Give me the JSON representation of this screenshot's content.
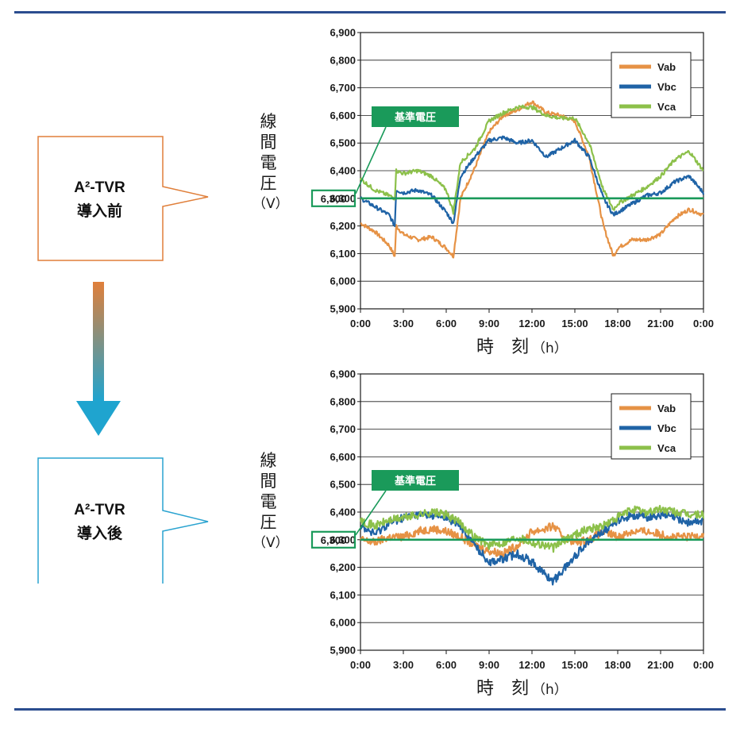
{
  "callouts": {
    "before": {
      "line1": "A²-TVR",
      "line2": "導入前"
    },
    "after": {
      "line1": "A²-TVR",
      "line2": "導入後"
    }
  },
  "colors": {
    "rule": "#2b4d8f",
    "before_box": "#e07f3a",
    "after_box": "#2aa3d0",
    "arrow_top": "#e07f3a",
    "arrow_bottom": "#1fa4cf",
    "reference_line": "#1a9a5a",
    "reference_tag": "#1a9a5a"
  },
  "chart_data": [
    {
      "type": "line",
      "ylabel": [
        "線",
        "間",
        "電",
        "圧",
        "（V）"
      ],
      "xlabel": "時　刻",
      "xunit": "（h）",
      "x_ticks": [
        "0:00",
        "3:00",
        "6:00",
        "9:00",
        "12:00",
        "15:00",
        "18:00",
        "21:00",
        "0:00"
      ],
      "y_ticks": [
        "6,900",
        "6,800",
        "6,700",
        "6,600",
        "6,500",
        "6,400",
        "6,300",
        "6,200",
        "6,100",
        "6,000",
        "5,900"
      ],
      "ylim": [
        5900,
        6900
      ],
      "xlim": [
        0,
        24
      ],
      "grid": true,
      "legend_position": "top-right",
      "reference": {
        "label": "基準電圧",
        "value": 6300,
        "value_label": "6,300"
      },
      "x": [
        0,
        1,
        2,
        2.4,
        2.5,
        3,
        4,
        5,
        6,
        6.5,
        7,
        8,
        9,
        10,
        11,
        12,
        13,
        14,
        15,
        16,
        17,
        17.7,
        18,
        19,
        20,
        21,
        22,
        23,
        24
      ],
      "series": [
        {
          "name": "Vab",
          "color": "#e69245",
          "values": [
            6210,
            6180,
            6130,
            6090,
            6200,
            6170,
            6150,
            6160,
            6120,
            6090,
            6300,
            6410,
            6540,
            6600,
            6620,
            6650,
            6610,
            6600,
            6580,
            6450,
            6200,
            6090,
            6120,
            6150,
            6150,
            6170,
            6230,
            6260,
            6240
          ]
        },
        {
          "name": "Vbc",
          "color": "#1f63a6",
          "values": [
            6300,
            6270,
            6240,
            6200,
            6330,
            6320,
            6330,
            6310,
            6250,
            6210,
            6380,
            6450,
            6510,
            6520,
            6500,
            6510,
            6450,
            6480,
            6510,
            6450,
            6300,
            6240,
            6250,
            6280,
            6310,
            6320,
            6360,
            6380,
            6320
          ]
        },
        {
          "name": "Vca",
          "color": "#8cc04a",
          "values": [
            6370,
            6330,
            6310,
            6300,
            6400,
            6390,
            6400,
            6380,
            6330,
            6250,
            6430,
            6480,
            6580,
            6610,
            6630,
            6630,
            6600,
            6590,
            6590,
            6500,
            6330,
            6260,
            6280,
            6310,
            6340,
            6380,
            6440,
            6470,
            6400
          ]
        }
      ]
    },
    {
      "type": "line",
      "ylabel": [
        "線",
        "間",
        "電",
        "圧",
        "（V）"
      ],
      "xlabel": "時　刻",
      "xunit": "（h）",
      "x_ticks": [
        "0:00",
        "3:00",
        "6:00",
        "9:00",
        "12:00",
        "15:00",
        "18:00",
        "21:00",
        "0:00"
      ],
      "y_ticks": [
        "6,900",
        "6,800",
        "6,700",
        "6,600",
        "6,500",
        "6,400",
        "6,300",
        "6,200",
        "6,100",
        "6,000",
        "5,900"
      ],
      "ylim": [
        5900,
        6900
      ],
      "xlim": [
        0,
        24
      ],
      "grid": true,
      "legend_position": "top-right",
      "reference": {
        "label": "基準電圧",
        "value": 6300,
        "value_label": "6,300"
      },
      "x": [
        0,
        1,
        2,
        3,
        4,
        5,
        6,
        7,
        8,
        9,
        10,
        11,
        12,
        13,
        13.5,
        14,
        15,
        16,
        17,
        18,
        19,
        20,
        21,
        22,
        23,
        24
      ],
      "series": [
        {
          "name": "Vab",
          "color": "#e69245",
          "values": [
            6300,
            6290,
            6310,
            6310,
            6330,
            6340,
            6330,
            6310,
            6280,
            6260,
            6250,
            6280,
            6330,
            6340,
            6350,
            6320,
            6290,
            6300,
            6330,
            6310,
            6330,
            6330,
            6320,
            6310,
            6310,
            6320
          ]
        },
        {
          "name": "Vbc",
          "color": "#1f63a6",
          "values": [
            6350,
            6320,
            6360,
            6380,
            6390,
            6390,
            6380,
            6350,
            6280,
            6220,
            6230,
            6250,
            6220,
            6170,
            6150,
            6180,
            6240,
            6300,
            6330,
            6370,
            6390,
            6380,
            6390,
            6380,
            6360,
            6370
          ]
        },
        {
          "name": "Vca",
          "color": "#8cc04a",
          "values": [
            6370,
            6350,
            6370,
            6380,
            6390,
            6400,
            6390,
            6360,
            6310,
            6280,
            6290,
            6310,
            6290,
            6280,
            6270,
            6290,
            6320,
            6340,
            6350,
            6380,
            6410,
            6400,
            6410,
            6400,
            6390,
            6390
          ]
        }
      ]
    }
  ]
}
